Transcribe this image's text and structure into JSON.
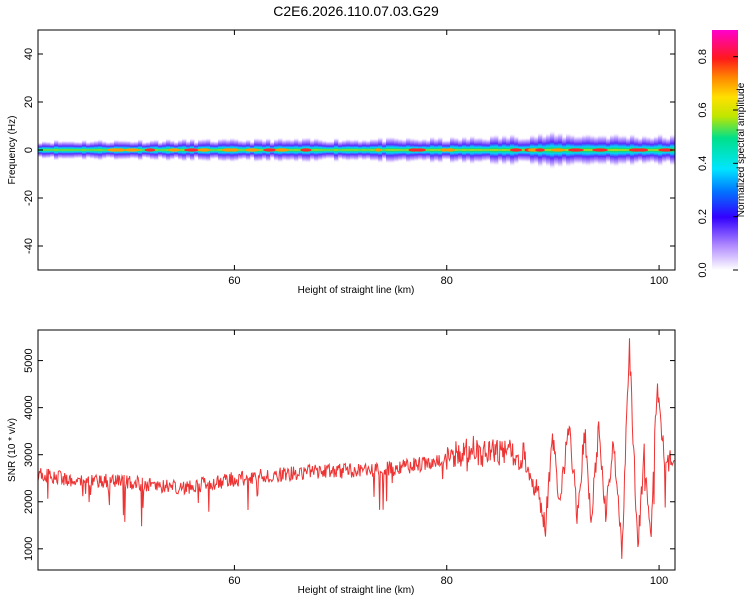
{
  "title": "C2E6.2026.110.07.03.G29",
  "colors": {
    "snr_line": "#ee3333",
    "axis": "#000000"
  },
  "chart_data": [
    {
      "type": "heatmap",
      "title": "",
      "xlabel": "Height of straight line (km)",
      "ylabel": "Frequency (Hz)",
      "xlim": [
        41.5,
        101.5
      ],
      "ylim": [
        -50,
        50
      ],
      "xticks": [
        60,
        80,
        100
      ],
      "xtick_labels": [
        "60",
        "80",
        "100"
      ],
      "yticks": [
        40,
        20,
        0,
        -20,
        -40
      ],
      "ytick_labels": [
        "40",
        "20",
        "0",
        "-20",
        "-40"
      ],
      "colorbar": {
        "label": "Normalized spectral amplitude",
        "range": [
          0.0,
          0.9
        ],
        "ticks": [
          0.0,
          0.2,
          0.4,
          0.6,
          0.8
        ],
        "tick_labels": [
          "0.0",
          "0.2",
          "0.4",
          "0.6",
          "0.8"
        ]
      },
      "band_center_hz": 0,
      "band_halfwidth_hz": [
        {
          "x": 41.5,
          "hz": 2
        },
        {
          "x": 80,
          "hz": 2.5
        },
        {
          "x": 90,
          "hz": 3.5
        },
        {
          "x": 101.5,
          "hz": 3
        }
      ]
    },
    {
      "type": "line",
      "title": "",
      "xlabel": "Height of straight line (km)",
      "ylabel": "SNR (10 * v/v)",
      "xlim": [
        41.5,
        101.5
      ],
      "ylim": [
        550,
        5650
      ],
      "xticks": [
        60,
        80,
        100
      ],
      "xtick_labels": [
        "60",
        "80",
        "100"
      ],
      "yticks": [
        1000,
        2000,
        3000,
        4000,
        5000
      ],
      "ytick_labels": [
        "1000",
        "2000",
        "3000",
        "4000",
        "5000"
      ],
      "series": [
        {
          "name": "SNR",
          "x": [
            41.5,
            45,
            50,
            55,
            60,
            65,
            70,
            75,
            80,
            82,
            84,
            86,
            87.5,
            88.5,
            89.3,
            90,
            90.6,
            91.5,
            92.3,
            93,
            93.6,
            94.3,
            95,
            95.7,
            96.5,
            97.2,
            98,
            98.6,
            99.2,
            99.8,
            100.5,
            101.5
          ],
          "values": [
            2600,
            2450,
            2420,
            2300,
            2480,
            2600,
            2650,
            2700,
            2900,
            3150,
            3000,
            3100,
            2900,
            2200,
            1500,
            3400,
            1800,
            3700,
            1700,
            3500,
            1600,
            3500,
            1700,
            3300,
            900,
            5300,
            1000,
            3000,
            1200,
            4400,
            2900,
            2800
          ]
        }
      ]
    }
  ]
}
